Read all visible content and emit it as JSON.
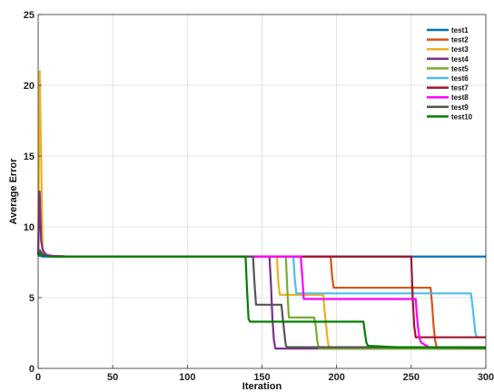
{
  "chart_data": {
    "type": "line",
    "title": "",
    "xlabel": "Iteration",
    "ylabel": "Average Error",
    "xlim": [
      0,
      300
    ],
    "ylim": [
      0,
      25
    ],
    "xticks": [
      0,
      50,
      100,
      150,
      200,
      250,
      300
    ],
    "yticks": [
      0,
      5,
      10,
      15,
      20,
      25
    ],
    "grid": true,
    "legend_position": "top-right",
    "series": [
      {
        "name": "test1",
        "color": "#0072BD",
        "x": [
          0,
          1,
          3,
          6,
          10,
          20,
          300
        ],
        "y": [
          8.0,
          7.95,
          7.9,
          7.9,
          7.9,
          7.9,
          7.9
        ]
      },
      {
        "name": "test2",
        "color": "#D95319",
        "x": [
          0,
          1,
          3,
          6,
          10,
          20,
          196,
          197,
          198,
          200,
          263,
          264,
          265,
          266,
          267,
          268,
          300
        ],
        "y": [
          8.0,
          8.3,
          8.1,
          8.0,
          7.95,
          7.9,
          7.9,
          6.5,
          5.7,
          5.7,
          5.7,
          4.5,
          3.0,
          2.0,
          1.5,
          1.4,
          1.4
        ]
      },
      {
        "name": "test3",
        "color": "#EDB120",
        "x": [
          0,
          1,
          2,
          3,
          4,
          6,
          10,
          20,
          160,
          161,
          162,
          191,
          192,
          193,
          194,
          195,
          300
        ],
        "y": [
          8.0,
          21.0,
          15.0,
          8.5,
          8.2,
          8.0,
          7.95,
          7.9,
          7.9,
          6.0,
          5.2,
          5.2,
          4.0,
          3.0,
          2.0,
          1.4,
          1.4
        ]
      },
      {
        "name": "test4",
        "color": "#7E2F8E",
        "x": [
          0,
          1,
          2,
          3,
          4,
          6,
          10,
          20,
          155,
          156,
          157,
          158,
          159,
          300
        ],
        "y": [
          8.0,
          12.5,
          9.0,
          8.4,
          8.2,
          8.0,
          7.95,
          7.9,
          7.9,
          6.0,
          3.5,
          2.0,
          1.4,
          1.4
        ]
      },
      {
        "name": "test5",
        "color": "#77AC30",
        "x": [
          0,
          1,
          3,
          6,
          10,
          20,
          166,
          167,
          168,
          185,
          186,
          187,
          188,
          300
        ],
        "y": [
          8.0,
          8.4,
          8.1,
          8.0,
          7.95,
          7.9,
          7.9,
          5.5,
          3.6,
          3.6,
          3.0,
          2.0,
          1.4,
          1.4
        ]
      },
      {
        "name": "test6",
        "color": "#4DBEEE",
        "x": [
          0,
          1,
          3,
          6,
          10,
          20,
          171,
          172,
          173,
          290,
          291,
          292,
          293,
          294,
          300
        ],
        "y": [
          8.0,
          8.2,
          8.0,
          7.95,
          7.9,
          7.9,
          7.9,
          6.3,
          5.3,
          5.3,
          4.5,
          3.5,
          2.5,
          2.2,
          2.2
        ]
      },
      {
        "name": "test7",
        "color": "#A2142F",
        "x": [
          0,
          1,
          3,
          6,
          10,
          20,
          250,
          251,
          252,
          253,
          300
        ],
        "y": [
          8.0,
          8.3,
          8.0,
          7.95,
          7.9,
          7.9,
          7.9,
          5.0,
          3.0,
          2.2,
          2.2
        ]
      },
      {
        "name": "test8",
        "color": "#FF00FF",
        "x": [
          0,
          1,
          3,
          6,
          10,
          20,
          146,
          176,
          177,
          178,
          253,
          254,
          255,
          256,
          257,
          262,
          300
        ],
        "y": [
          8.0,
          8.3,
          8.1,
          8.0,
          7.95,
          7.9,
          7.9,
          7.9,
          6.5,
          4.9,
          4.9,
          3.5,
          2.5,
          2.0,
          1.8,
          1.5,
          1.5
        ]
      },
      {
        "name": "test9",
        "color": "#555555",
        "x": [
          0,
          1,
          3,
          6,
          10,
          20,
          144,
          145,
          146,
          152,
          153,
          163,
          164,
          165,
          166,
          167,
          300
        ],
        "y": [
          8.0,
          8.3,
          8.0,
          7.95,
          7.9,
          7.9,
          7.9,
          6.0,
          4.5,
          4.5,
          4.5,
          4.5,
          3.5,
          2.5,
          1.6,
          1.5,
          1.5
        ]
      },
      {
        "name": "test10",
        "color": "#008000",
        "x": [
          0,
          1,
          3,
          6,
          10,
          20,
          139,
          140,
          141,
          142,
          218,
          219,
          220,
          221,
          240,
          300
        ],
        "y": [
          8.0,
          8.1,
          8.0,
          7.95,
          7.9,
          7.9,
          7.9,
          5.5,
          3.5,
          3.3,
          3.3,
          2.5,
          1.8,
          1.6,
          1.5,
          1.45
        ]
      }
    ]
  }
}
